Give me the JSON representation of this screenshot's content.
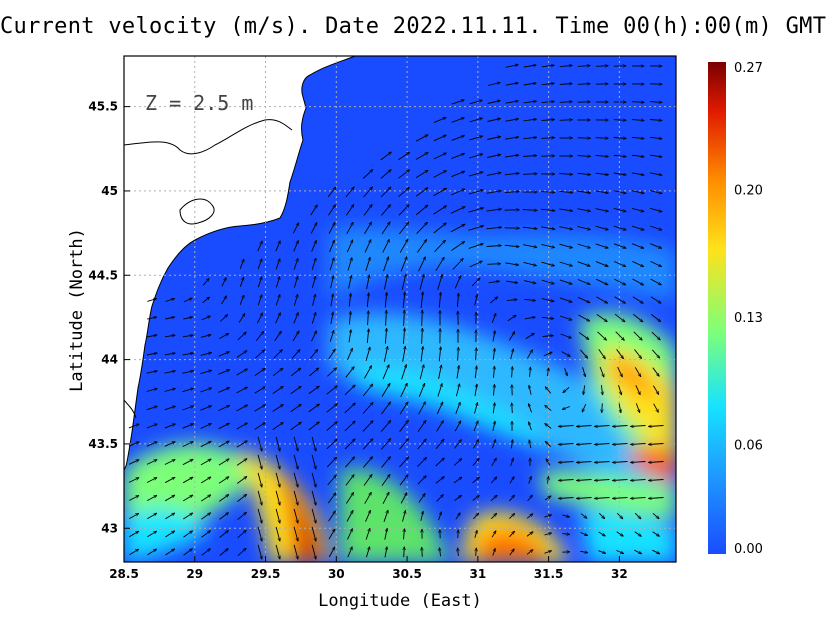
{
  "title": "Current velocity (m/s). Date 2022.11.11. Time 00(h):00(m) GMT",
  "depth_label": "Z = 2.5 m",
  "chart_data": {
    "type": "map",
    "variable": "Current velocity (m/s)",
    "xlabel": "Longitude (East)",
    "ylabel": "Latitude (North)",
    "xlim": [
      28.5,
      32.4
    ],
    "ylim": [
      42.8,
      45.8
    ],
    "x_ticks": [
      {
        "value": 28.5,
        "label": "28.5"
      },
      {
        "value": 29,
        "label": "29"
      },
      {
        "value": 29.5,
        "label": "29.5"
      },
      {
        "value": 30,
        "label": "30"
      },
      {
        "value": 30.5,
        "label": "30.5"
      },
      {
        "value": 31,
        "label": "31"
      },
      {
        "value": 31.5,
        "label": "31.5"
      },
      {
        "value": 32,
        "label": "32"
      }
    ],
    "y_ticks": [
      {
        "value": 43,
        "label": "43"
      },
      {
        "value": 43.5,
        "label": "43.5"
      },
      {
        "value": 44,
        "label": "44"
      },
      {
        "value": 44.5,
        "label": "44.5"
      },
      {
        "value": 45,
        "label": "45"
      },
      {
        "value": 45.5,
        "label": "45.5"
      }
    ],
    "grid": true,
    "colorbar": {
      "min": 0.0,
      "max": 0.27,
      "ticks": [
        {
          "value": 0.27,
          "label": "0.27"
        },
        {
          "value": 0.2,
          "label": "0.20"
        },
        {
          "value": 0.13,
          "label": "0.13"
        },
        {
          "value": 0.06,
          "label": "0.06"
        },
        {
          "value": 0.0,
          "label": "0.00"
        }
      ],
      "colormap": [
        "#1a4cff",
        "#1f8fff",
        "#17e3ff",
        "#7dff7a",
        "#ffe21a",
        "#ff8c00",
        "#e01a00",
        "#7a0000"
      ]
    },
    "velocity_hotspots": [
      {
        "lon": 29.75,
        "lat": 43.0,
        "speed": 0.26
      },
      {
        "lon": 32.25,
        "lat": 43.35,
        "speed": 0.22
      },
      {
        "lon": 32.0,
        "lat": 44.0,
        "speed": 0.18
      },
      {
        "lon": 31.3,
        "lat": 42.9,
        "speed": 0.21
      },
      {
        "lon": 30.6,
        "lat": 43.7,
        "speed": 0.12
      },
      {
        "lon": 29.2,
        "lat": 43.4,
        "speed": 0.11
      },
      {
        "lon": 29.0,
        "lat": 42.95,
        "speed": 0.12
      },
      {
        "lon": 30.4,
        "lat": 42.95,
        "speed": 0.13
      }
    ],
    "land_color": "#ffffff",
    "sea_background_color": "#1a4cff"
  }
}
